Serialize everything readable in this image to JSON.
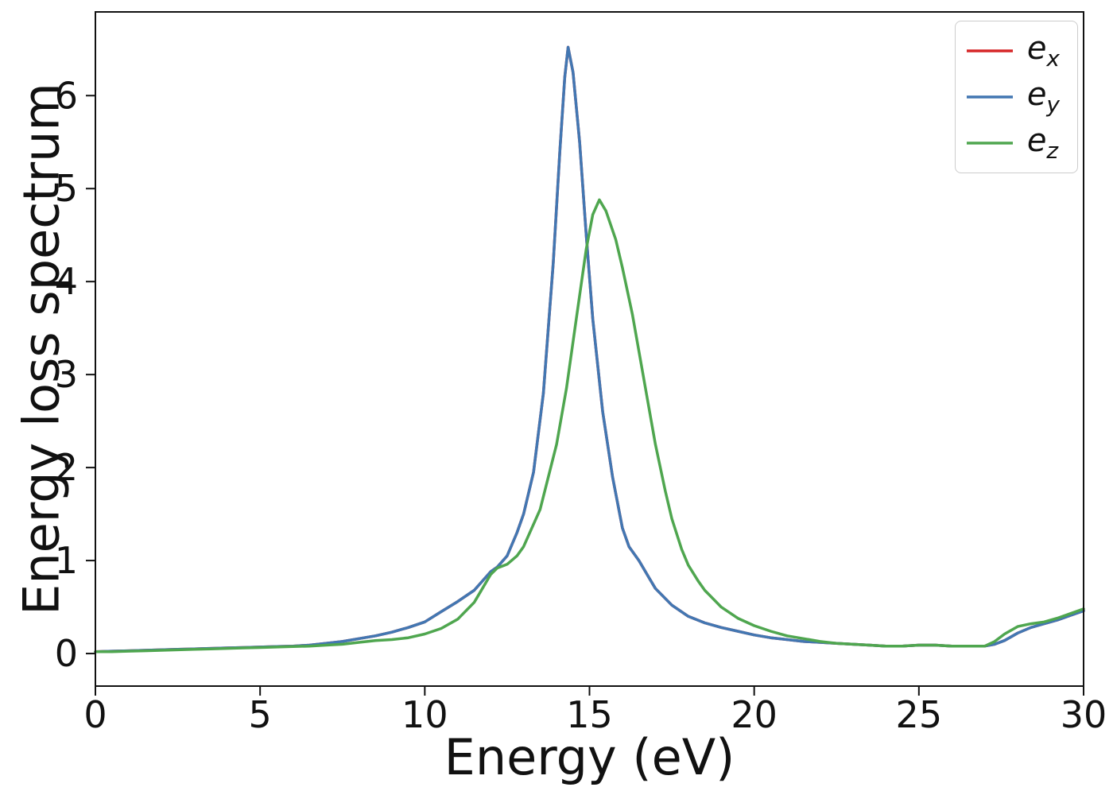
{
  "chart_data": {
    "type": "line",
    "title": "",
    "xlabel": "Energy (eV)",
    "ylabel": "Energy loss spectrum",
    "xlim": [
      0,
      30
    ],
    "ylim": [
      -0.35,
      6.9
    ],
    "x_ticks": [
      0,
      5,
      10,
      15,
      20,
      25,
      30
    ],
    "y_ticks": [
      0,
      1,
      2,
      3,
      4,
      5,
      6
    ],
    "grid": false,
    "legend_position": "upper right",
    "axis_color": "#111111",
    "series": [
      {
        "name": "e_x",
        "color": "#d62728",
        "points": [
          [
            0,
            0.02
          ],
          [
            0.5,
            0.025
          ],
          [
            1,
            0.03
          ],
          [
            1.5,
            0.035
          ],
          [
            2,
            0.04
          ],
          [
            2.5,
            0.045
          ],
          [
            3,
            0.05
          ],
          [
            3.5,
            0.055
          ],
          [
            4,
            0.06
          ],
          [
            4.5,
            0.065
          ],
          [
            5,
            0.07
          ],
          [
            5.5,
            0.075
          ],
          [
            6,
            0.08
          ],
          [
            6.5,
            0.09
          ],
          [
            7,
            0.11
          ],
          [
            7.5,
            0.13
          ],
          [
            8,
            0.16
          ],
          [
            8.5,
            0.19
          ],
          [
            9,
            0.23
          ],
          [
            9.5,
            0.28
          ],
          [
            10,
            0.34
          ],
          [
            10.5,
            0.45
          ],
          [
            11,
            0.56
          ],
          [
            11.5,
            0.68
          ],
          [
            11.8,
            0.8
          ],
          [
            12,
            0.88
          ],
          [
            12.2,
            0.93
          ],
          [
            12.5,
            1.05
          ],
          [
            12.8,
            1.3
          ],
          [
            13,
            1.5
          ],
          [
            13.3,
            1.95
          ],
          [
            13.6,
            2.8
          ],
          [
            13.9,
            4.2
          ],
          [
            14.1,
            5.4
          ],
          [
            14.25,
            6.2
          ],
          [
            14.35,
            6.52
          ],
          [
            14.5,
            6.25
          ],
          [
            14.7,
            5.5
          ],
          [
            14.9,
            4.5
          ],
          [
            15.1,
            3.6
          ],
          [
            15.4,
            2.6
          ],
          [
            15.7,
            1.9
          ],
          [
            16,
            1.35
          ],
          [
            16.2,
            1.15
          ],
          [
            16.5,
            1.0
          ],
          [
            16.8,
            0.82
          ],
          [
            17,
            0.7
          ],
          [
            17.5,
            0.52
          ],
          [
            18,
            0.4
          ],
          [
            18.5,
            0.33
          ],
          [
            19,
            0.28
          ],
          [
            19.5,
            0.24
          ],
          [
            20,
            0.2
          ],
          [
            20.5,
            0.17
          ],
          [
            21,
            0.15
          ],
          [
            21.5,
            0.13
          ],
          [
            22,
            0.12
          ],
          [
            22.5,
            0.11
          ],
          [
            23,
            0.1
          ],
          [
            23.5,
            0.09
          ],
          [
            24,
            0.08
          ],
          [
            24.5,
            0.08
          ],
          [
            25,
            0.09
          ],
          [
            25.5,
            0.09
          ],
          [
            26,
            0.08
          ],
          [
            26.5,
            0.08
          ],
          [
            27,
            0.08
          ],
          [
            27.3,
            0.1
          ],
          [
            27.6,
            0.14
          ],
          [
            28,
            0.22
          ],
          [
            28.4,
            0.28
          ],
          [
            28.8,
            0.32
          ],
          [
            29.2,
            0.36
          ],
          [
            29.6,
            0.41
          ],
          [
            30,
            0.46
          ]
        ]
      },
      {
        "name": "e_y",
        "color": "#4277b2",
        "points": [
          [
            0,
            0.02
          ],
          [
            0.5,
            0.025
          ],
          [
            1,
            0.03
          ],
          [
            1.5,
            0.035
          ],
          [
            2,
            0.04
          ],
          [
            2.5,
            0.045
          ],
          [
            3,
            0.05
          ],
          [
            3.5,
            0.055
          ],
          [
            4,
            0.06
          ],
          [
            4.5,
            0.065
          ],
          [
            5,
            0.07
          ],
          [
            5.5,
            0.075
          ],
          [
            6,
            0.08
          ],
          [
            6.5,
            0.09
          ],
          [
            7,
            0.11
          ],
          [
            7.5,
            0.13
          ],
          [
            8,
            0.16
          ],
          [
            8.5,
            0.19
          ],
          [
            9,
            0.23
          ],
          [
            9.5,
            0.28
          ],
          [
            10,
            0.34
          ],
          [
            10.5,
            0.45
          ],
          [
            11,
            0.56
          ],
          [
            11.5,
            0.68
          ],
          [
            11.8,
            0.8
          ],
          [
            12,
            0.88
          ],
          [
            12.2,
            0.93
          ],
          [
            12.5,
            1.05
          ],
          [
            12.8,
            1.3
          ],
          [
            13,
            1.5
          ],
          [
            13.3,
            1.95
          ],
          [
            13.6,
            2.8
          ],
          [
            13.9,
            4.2
          ],
          [
            14.1,
            5.4
          ],
          [
            14.25,
            6.2
          ],
          [
            14.35,
            6.52
          ],
          [
            14.5,
            6.25
          ],
          [
            14.7,
            5.5
          ],
          [
            14.9,
            4.5
          ],
          [
            15.1,
            3.6
          ],
          [
            15.4,
            2.6
          ],
          [
            15.7,
            1.9
          ],
          [
            16,
            1.35
          ],
          [
            16.2,
            1.15
          ],
          [
            16.5,
            1.0
          ],
          [
            16.8,
            0.82
          ],
          [
            17,
            0.7
          ],
          [
            17.5,
            0.52
          ],
          [
            18,
            0.4
          ],
          [
            18.5,
            0.33
          ],
          [
            19,
            0.28
          ],
          [
            19.5,
            0.24
          ],
          [
            20,
            0.2
          ],
          [
            20.5,
            0.17
          ],
          [
            21,
            0.15
          ],
          [
            21.5,
            0.13
          ],
          [
            22,
            0.12
          ],
          [
            22.5,
            0.11
          ],
          [
            23,
            0.1
          ],
          [
            23.5,
            0.09
          ],
          [
            24,
            0.08
          ],
          [
            24.5,
            0.08
          ],
          [
            25,
            0.09
          ],
          [
            25.5,
            0.09
          ],
          [
            26,
            0.08
          ],
          [
            26.5,
            0.08
          ],
          [
            27,
            0.08
          ],
          [
            27.3,
            0.1
          ],
          [
            27.6,
            0.14
          ],
          [
            28,
            0.22
          ],
          [
            28.4,
            0.28
          ],
          [
            28.8,
            0.32
          ],
          [
            29.2,
            0.36
          ],
          [
            29.6,
            0.41
          ],
          [
            30,
            0.46
          ]
        ]
      },
      {
        "name": "e_z",
        "color": "#4fa64f",
        "points": [
          [
            0,
            0.02
          ],
          [
            0.5,
            0.02
          ],
          [
            1,
            0.025
          ],
          [
            1.5,
            0.03
          ],
          [
            2,
            0.035
          ],
          [
            2.5,
            0.04
          ],
          [
            3,
            0.045
          ],
          [
            3.5,
            0.05
          ],
          [
            4,
            0.055
          ],
          [
            4.5,
            0.06
          ],
          [
            5,
            0.065
          ],
          [
            5.5,
            0.07
          ],
          [
            6,
            0.075
          ],
          [
            6.5,
            0.08
          ],
          [
            7,
            0.09
          ],
          [
            7.5,
            0.1
          ],
          [
            8,
            0.12
          ],
          [
            8.5,
            0.14
          ],
          [
            9,
            0.15
          ],
          [
            9.5,
            0.17
          ],
          [
            10,
            0.21
          ],
          [
            10.5,
            0.27
          ],
          [
            11,
            0.37
          ],
          [
            11.5,
            0.55
          ],
          [
            11.8,
            0.73
          ],
          [
            12,
            0.85
          ],
          [
            12.2,
            0.92
          ],
          [
            12.5,
            0.96
          ],
          [
            12.8,
            1.05
          ],
          [
            13,
            1.15
          ],
          [
            13.5,
            1.55
          ],
          [
            14,
            2.25
          ],
          [
            14.3,
            2.85
          ],
          [
            14.6,
            3.6
          ],
          [
            14.9,
            4.35
          ],
          [
            15.1,
            4.72
          ],
          [
            15.3,
            4.88
          ],
          [
            15.5,
            4.76
          ],
          [
            15.8,
            4.45
          ],
          [
            16,
            4.15
          ],
          [
            16.3,
            3.65
          ],
          [
            16.5,
            3.25
          ],
          [
            16.8,
            2.65
          ],
          [
            17,
            2.25
          ],
          [
            17.3,
            1.75
          ],
          [
            17.5,
            1.45
          ],
          [
            17.8,
            1.12
          ],
          [
            18,
            0.95
          ],
          [
            18.3,
            0.78
          ],
          [
            18.5,
            0.68
          ],
          [
            19,
            0.5
          ],
          [
            19.5,
            0.38
          ],
          [
            20,
            0.3
          ],
          [
            20.5,
            0.24
          ],
          [
            21,
            0.19
          ],
          [
            21.5,
            0.16
          ],
          [
            22,
            0.13
          ],
          [
            22.5,
            0.11
          ],
          [
            23,
            0.1
          ],
          [
            23.5,
            0.09
          ],
          [
            24,
            0.08
          ],
          [
            24.5,
            0.08
          ],
          [
            25,
            0.09
          ],
          [
            25.5,
            0.09
          ],
          [
            26,
            0.08
          ],
          [
            26.5,
            0.08
          ],
          [
            27,
            0.08
          ],
          [
            27.3,
            0.13
          ],
          [
            27.6,
            0.21
          ],
          [
            28,
            0.29
          ],
          [
            28.4,
            0.32
          ],
          [
            28.8,
            0.34
          ],
          [
            29.2,
            0.38
          ],
          [
            29.6,
            0.43
          ],
          [
            30,
            0.48
          ]
        ]
      }
    ]
  }
}
